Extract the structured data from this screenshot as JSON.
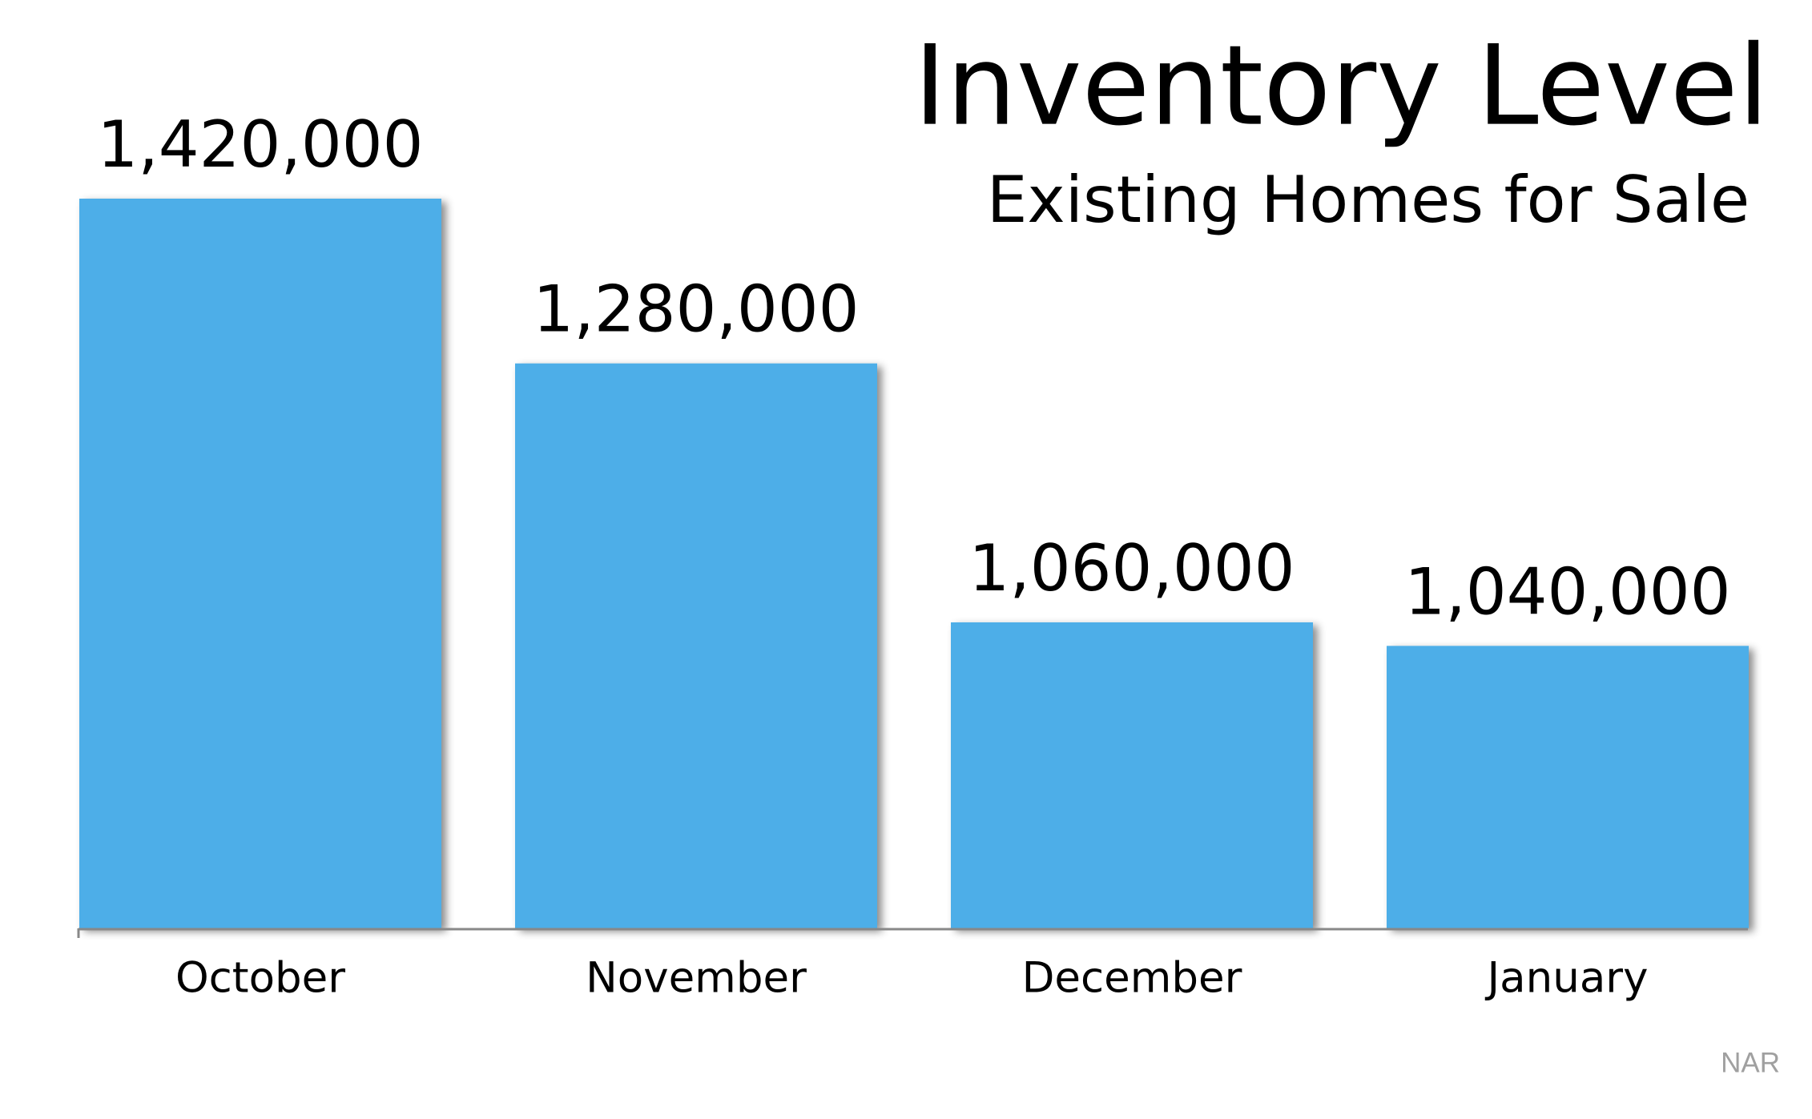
{
  "chart_data": {
    "type": "bar",
    "title": "Inventory Level",
    "subtitle": "Existing Homes for Sale",
    "categories": [
      "October",
      "November",
      "December",
      "January"
    ],
    "values": [
      1420000,
      1280000,
      1060000,
      1040000
    ],
    "value_labels": [
      "1,420,000",
      "1,280,000",
      "1,060,000",
      "1,040,000"
    ],
    "color": "#4daee8",
    "ylim": [
      800000,
      1420000
    ],
    "grid": false,
    "source": "NAR"
  }
}
